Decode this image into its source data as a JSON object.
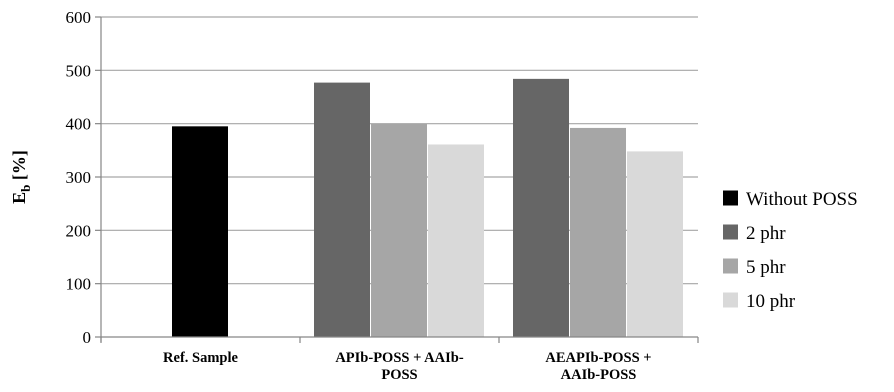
{
  "chart_data": {
    "type": "bar",
    "categories": [
      [
        "Ref. Sample"
      ],
      [
        "APIb-POSS + AAIb-",
        "POSS"
      ],
      [
        "AEAPIb-POSS +",
        "AAIb-POSS"
      ]
    ],
    "series": [
      {
        "name": "Without POSS",
        "color": "#000000",
        "values": [
          395,
          null,
          null
        ]
      },
      {
        "name": "2 phr",
        "color": "#666666",
        "values": [
          null,
          477,
          484
        ]
      },
      {
        "name": "5 phr",
        "color": "#a6a6a6",
        "values": [
          null,
          400,
          392
        ]
      },
      {
        "name": "10 phr",
        "color": "#d9d9d9",
        "values": [
          null,
          361,
          348
        ]
      }
    ],
    "ylabel": {
      "main": "E",
      "sub": "b",
      "unit": " [%]"
    },
    "ylim": [
      0,
      600
    ],
    "yticks": [
      0,
      100,
      200,
      300,
      400,
      500,
      600
    ],
    "grid": true,
    "legend": "right"
  }
}
